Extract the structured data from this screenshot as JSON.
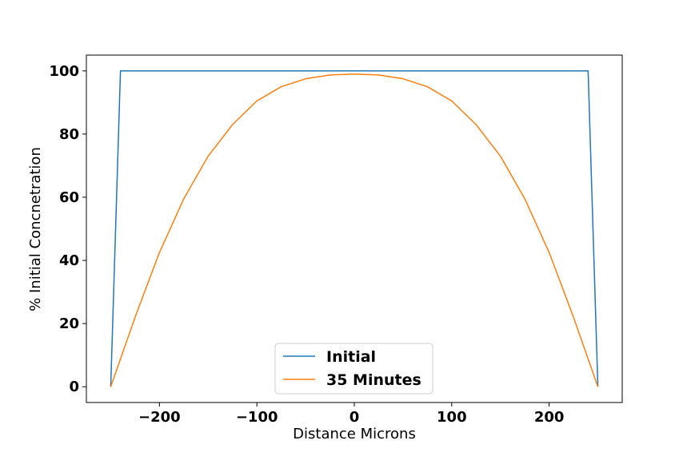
{
  "chart_data": {
    "type": "line",
    "title": "",
    "xlabel": "Distance Microns",
    "ylabel": "% Initial Concnetration",
    "xlim": [
      -275,
      275
    ],
    "ylim": [
      -5,
      105
    ],
    "xticks": [
      -200,
      -100,
      0,
      100,
      200
    ],
    "xtick_labels": [
      "−200",
      "−100",
      "0",
      "100",
      "200"
    ],
    "yticks": [
      0,
      20,
      40,
      60,
      80,
      100
    ],
    "ytick_labels": [
      "0",
      "20",
      "40",
      "60",
      "80",
      "100"
    ],
    "grid": false,
    "legend_position": "bottom-center",
    "series": [
      {
        "name": "Initial",
        "color": "#1f77b4",
        "x": [
          -250,
          -240,
          240,
          250
        ],
        "y": [
          0,
          100,
          100,
          0
        ]
      },
      {
        "name": "35 Minutes",
        "color": "#ff7f0e",
        "x": [
          -250,
          -225,
          -200,
          -175,
          -150,
          -125,
          -100,
          -75,
          -50,
          -25,
          0,
          25,
          50,
          75,
          100,
          125,
          150,
          175,
          200,
          225,
          250
        ],
        "y": [
          0,
          22,
          42.5,
          59.5,
          73,
          83,
          90.5,
          95,
          97.5,
          98.7,
          99,
          98.7,
          97.5,
          95,
          90.5,
          83,
          73,
          59.5,
          42.5,
          22,
          0
        ]
      }
    ]
  }
}
